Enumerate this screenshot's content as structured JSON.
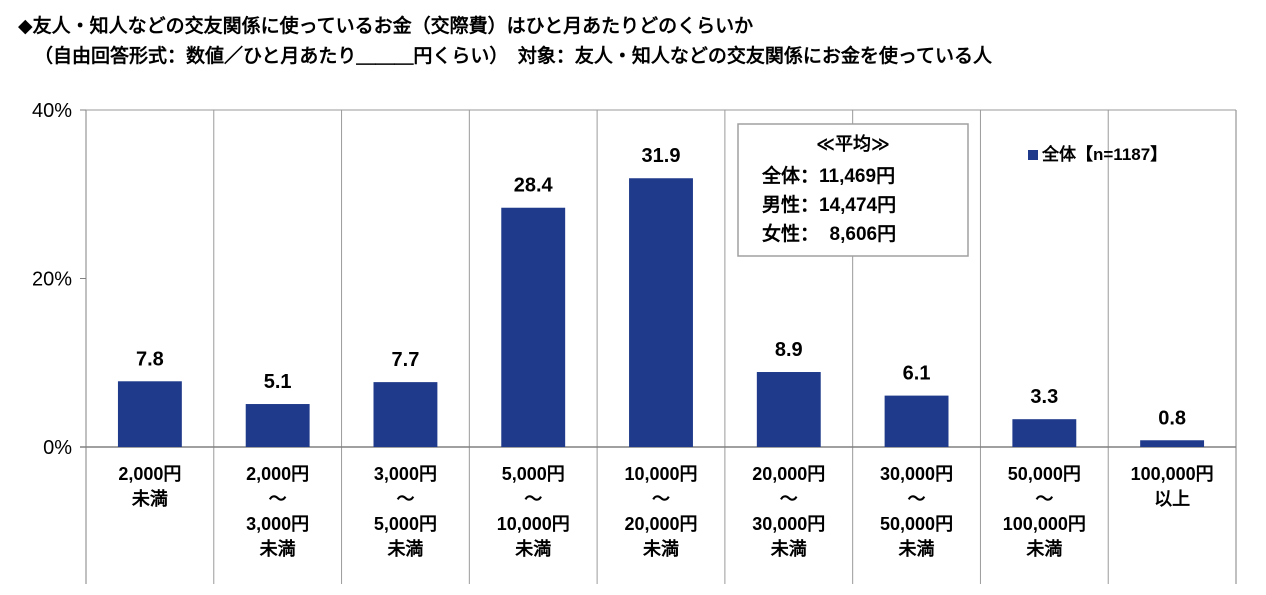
{
  "title": {
    "line1": "◆友人・知人などの交友関係に使っているお金（交際費）はひと月あたりどのくらいか",
    "line2": "（自由回答形式：数値／ひと月あたり＿＿＿円くらい）　対象：友人・知人などの交友関係にお金を使っている人"
  },
  "colors": {
    "bar": "#1f3a8a",
    "grid": "#9a9a9a",
    "axis": "#808080"
  },
  "chart_data": {
    "type": "bar",
    "categories": [
      [
        "2,000円",
        "未満"
      ],
      [
        "2,000円",
        "～",
        "3,000円",
        "未満"
      ],
      [
        "3,000円",
        "～",
        "5,000円",
        "未満"
      ],
      [
        "5,000円",
        "～",
        "10,000円",
        "未満"
      ],
      [
        "10,000円",
        "～",
        "20,000円",
        "未満"
      ],
      [
        "20,000円",
        "～",
        "30,000円",
        "未満"
      ],
      [
        "30,000円",
        "～",
        "50,000円",
        "未満"
      ],
      [
        "50,000円",
        "～",
        "100,000円",
        "未満"
      ],
      [
        "100,000円",
        "以上"
      ]
    ],
    "series": [
      {
        "name": "全体【n=1187】",
        "values": [
          7.8,
          5.1,
          7.7,
          28.4,
          31.9,
          8.9,
          6.1,
          3.3,
          0.8
        ]
      }
    ],
    "value_labels": [
      "7.8",
      "5.1",
      "7.7",
      "28.4",
      "31.9",
      "8.9",
      "6.1",
      "3.3",
      "0.8"
    ],
    "ylim": [
      0,
      40
    ],
    "yticks": [
      0,
      20,
      40
    ],
    "ytick_labels": [
      "0%",
      "20%",
      "40%"
    ],
    "legend": "top-right",
    "annotation": {
      "heading": "≪平均≫",
      "lines": [
        "全体：11,469円",
        "男性：14,474円",
        "女性：  8,606円"
      ]
    }
  }
}
